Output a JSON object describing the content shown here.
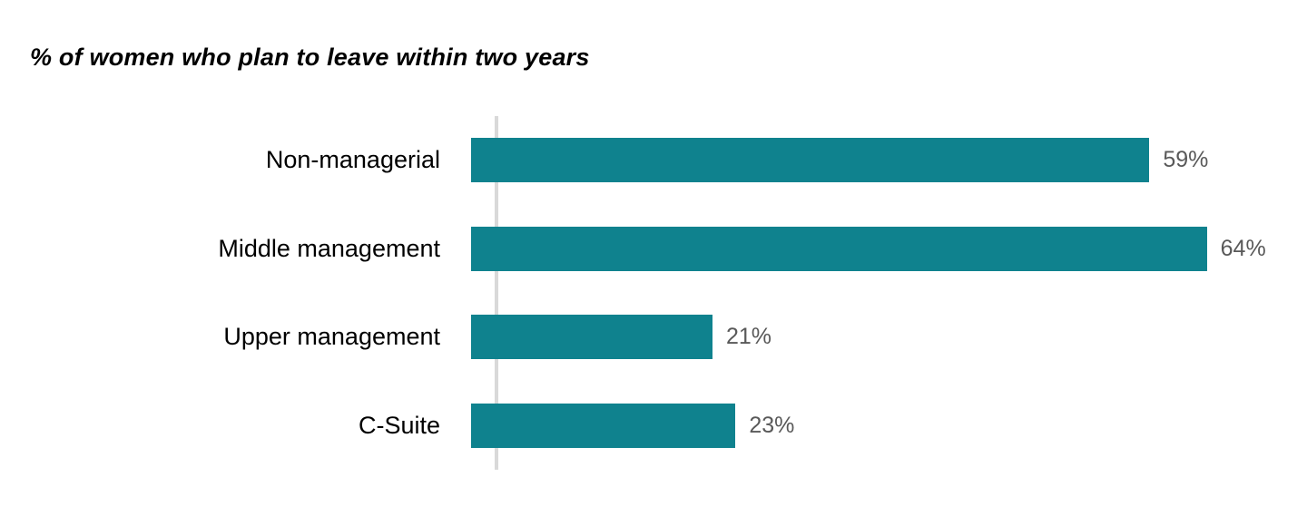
{
  "chart_data": {
    "type": "bar",
    "orientation": "horizontal",
    "title": "% of women who plan to leave within two years",
    "categories": [
      "Non-managerial",
      "Middle management",
      "Upper management",
      "C-Suite"
    ],
    "values": [
      59,
      64,
      21,
      23
    ],
    "value_labels": [
      "59%",
      "64%",
      "21%",
      "23%"
    ],
    "xlabel": "",
    "ylabel": "",
    "xlim": [
      0,
      67.5
    ],
    "grid": "off",
    "legend": "none"
  },
  "colors": {
    "bar": "#0f828e",
    "value_label": "#595959",
    "axis_line": "#d9d9d9",
    "title": "#000000"
  }
}
